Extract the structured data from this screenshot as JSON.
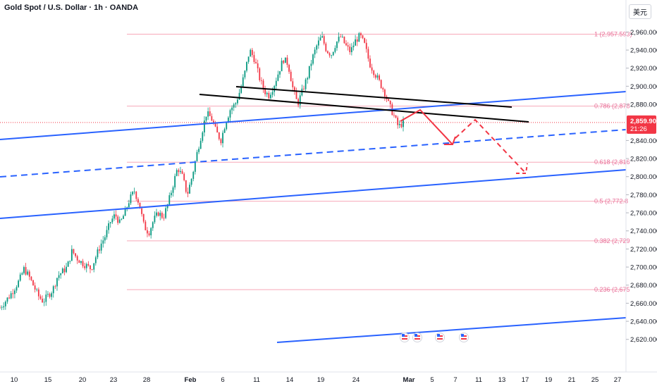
{
  "header": {
    "title": "Gold Spot / U.S. Dollar · 1h · OANDA",
    "currency": "美元"
  },
  "price_badge": {
    "price": "2,859.905",
    "countdown": "21:26",
    "color": "#f23645"
  },
  "colors": {
    "fib": "#f7a8b8",
    "fib_text": "#e8709a",
    "trend_blue": "#2962ff",
    "trend_black": "#000000",
    "projection_red": "#f23645",
    "candle_up": "#089981",
    "candle_down": "#f23645"
  },
  "chart_data": {
    "type": "candlestick",
    "title": "Gold Spot / U.S. Dollar · 1h · OANDA",
    "x_ticks": [
      "10",
      "15",
      "20",
      "23",
      "28",
      "Feb",
      "6",
      "11",
      "14",
      "19",
      "24",
      "Mar",
      "5",
      "7",
      "11",
      "13",
      "17",
      "19",
      "21",
      "25",
      "27"
    ],
    "y_ticks": [
      "2,960.000",
      "2,940.000",
      "2,920.000",
      "2,900.000",
      "2,880.000",
      "2,840.000",
      "2,820.000",
      "2,800.000",
      "2,780.000",
      "2,760.000",
      "2,740.000",
      "2,720.000",
      "2,700.000",
      "2,680.000",
      "2,660.000",
      "2,640.000",
      "2,620.000"
    ],
    "ylim": [
      2612,
      2972
    ],
    "fib_levels": [
      {
        "ratio": "1",
        "price": 2957.593,
        "label": "1 (2,957.593)"
      },
      {
        "ratio": "0.786",
        "price": 2878,
        "label": "0.786 (2,878"
      },
      {
        "ratio": "0.618",
        "price": 2816,
        "label": "0.618 (2,816"
      },
      {
        "ratio": "0.5",
        "price": 2772.8,
        "label": "0.5 (2,772.8"
      },
      {
        "ratio": "0.382",
        "price": 2729,
        "label": "0.382 (2,729"
      },
      {
        "ratio": "0.236",
        "price": 2675,
        "label": "0.236 (2,675"
      }
    ],
    "close_price": 2859.905,
    "price_path": [
      [
        0,
        2655
      ],
      [
        2,
        2668
      ],
      [
        4,
        2685
      ],
      [
        5,
        2698
      ],
      [
        6,
        2690
      ],
      [
        8,
        2668
      ],
      [
        9,
        2662
      ],
      [
        11,
        2675
      ],
      [
        12,
        2690
      ],
      [
        14,
        2700
      ],
      [
        15,
        2718
      ],
      [
        16,
        2710
      ],
      [
        17,
        2705
      ],
      [
        19,
        2698
      ],
      [
        20,
        2712
      ],
      [
        21,
        2725
      ],
      [
        22,
        2735
      ],
      [
        23,
        2750
      ],
      [
        24,
        2758
      ],
      [
        25,
        2748
      ],
      [
        26,
        2760
      ],
      [
        27,
        2775
      ],
      [
        28,
        2784
      ],
      [
        29,
        2770
      ],
      [
        30,
        2745
      ],
      [
        31,
        2738
      ],
      [
        32,
        2752
      ],
      [
        33,
        2760
      ],
      [
        34,
        2755
      ],
      [
        35,
        2770
      ],
      [
        36,
        2790
      ],
      [
        37,
        2810
      ],
      [
        38,
        2800
      ],
      [
        39,
        2780
      ],
      [
        40,
        2800
      ],
      [
        41,
        2825
      ],
      [
        42,
        2848
      ],
      [
        43,
        2870
      ],
      [
        44,
        2865
      ],
      [
        45,
        2850
      ],
      [
        46,
        2840
      ],
      [
        47,
        2860
      ],
      [
        48,
        2875
      ],
      [
        49,
        2880
      ],
      [
        50,
        2895
      ],
      [
        51,
        2915
      ],
      [
        52,
        2940
      ],
      [
        53,
        2930
      ],
      [
        54,
        2910
      ],
      [
        55,
        2895
      ],
      [
        56,
        2890
      ],
      [
        57,
        2900
      ],
      [
        58,
        2915
      ],
      [
        59,
        2930
      ],
      [
        60,
        2925
      ],
      [
        61,
        2898
      ],
      [
        62,
        2880
      ],
      [
        63,
        2895
      ],
      [
        64,
        2910
      ],
      [
        65,
        2930
      ],
      [
        66,
        2945
      ],
      [
        67,
        2955
      ],
      [
        68,
        2940
      ],
      [
        69,
        2935
      ],
      [
        70,
        2948
      ],
      [
        71,
        2955
      ],
      [
        72,
        2945
      ],
      [
        73,
        2938
      ],
      [
        74,
        2950
      ],
      [
        75,
        2956
      ],
      [
        76,
        2945
      ],
      [
        77,
        2925
      ],
      [
        78,
        2915
      ],
      [
        79,
        2905
      ],
      [
        80,
        2895
      ],
      [
        81,
        2880
      ],
      [
        82,
        2868
      ],
      [
        83,
        2855
      ],
      [
        84,
        2860
      ]
    ],
    "annotations": {
      "blue_channel": "ascending blue trend channel (upper, dashed middle, lower)",
      "black_lines": "two descending black resistance lines",
      "projection": "red zig-zag projection down toward 2,800"
    }
  }
}
